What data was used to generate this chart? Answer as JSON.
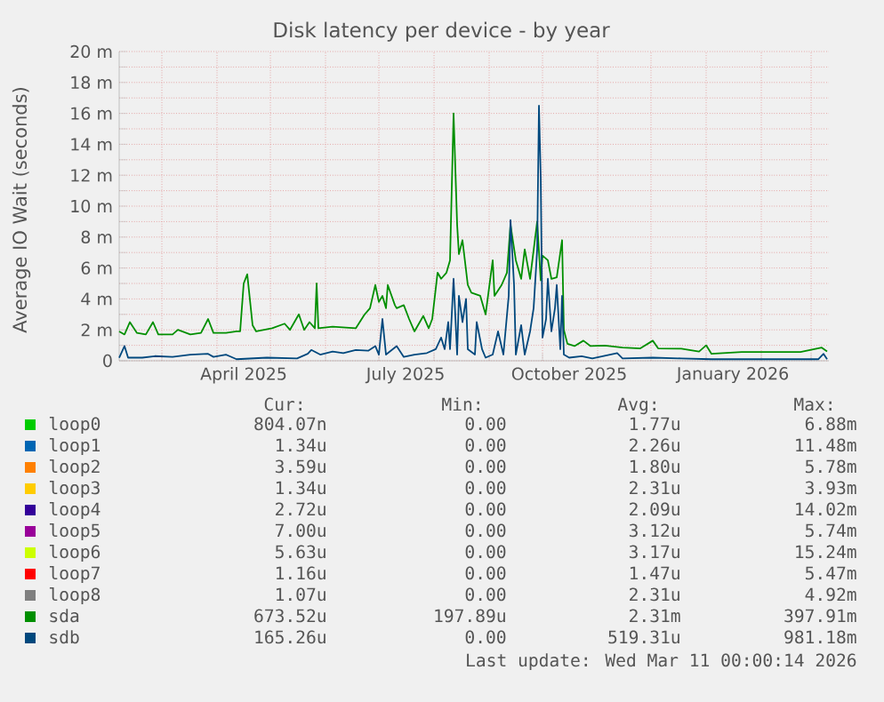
{
  "chart_data": {
    "type": "line",
    "title": "Disk latency per device - by year",
    "ylabel": "Average IO Wait (seconds)",
    "xlim": [
      "2025-02-05",
      "2026-03-11"
    ],
    "ylim": [
      0,
      20
    ],
    "xticks": [
      {
        "value": "2025-03-01",
        "label": null
      },
      {
        "value": "2025-04-01",
        "label": null
      },
      {
        "value": "2025-05-01",
        "label": null
      },
      {
        "value": "2025-06-01",
        "label": null
      },
      {
        "value": "2025-07-01",
        "label": null
      },
      {
        "value": "2025-08-01",
        "label": null
      },
      {
        "value": "2025-09-01",
        "label": null
      },
      {
        "value": "2025-10-01",
        "label": null
      },
      {
        "value": "2025-11-01",
        "label": null
      },
      {
        "value": "2025-12-01",
        "label": null
      },
      {
        "value": "2026-01-01",
        "label": null
      },
      {
        "value": "2026-02-01",
        "label": null
      },
      {
        "value": "2026-03-01",
        "label": null
      },
      {
        "value": "2025-04-16",
        "label": "April 2025"
      },
      {
        "value": "2025-07-16",
        "label": "July 2025"
      },
      {
        "value": "2025-10-16",
        "label": "October 2025"
      },
      {
        "value": "2026-01-16",
        "label": "January 2026"
      }
    ],
    "yticks": [
      0,
      {
        "value": 1,
        "label": null
      },
      {
        "value": 2,
        "label": "2 m"
      },
      {
        "value": 3,
        "label": null
      },
      {
        "value": 4,
        "label": "4 m"
      },
      {
        "value": 5,
        "label": null
      },
      {
        "value": 6,
        "label": "6 m"
      },
      {
        "value": 7,
        "label": null
      },
      {
        "value": 8,
        "label": "8 m"
      },
      {
        "value": 9,
        "label": null
      },
      {
        "value": 10,
        "label": "10 m"
      },
      {
        "value": 11,
        "label": null
      },
      {
        "value": 12,
        "label": "12 m"
      },
      {
        "value": 13,
        "label": null
      },
      {
        "value": 14,
        "label": "14 m"
      },
      {
        "value": 15,
        "label": null
      },
      {
        "value": 16,
        "label": "16 m"
      },
      {
        "value": 17,
        "label": null
      },
      {
        "value": 18,
        "label": "18 m"
      },
      {
        "value": 19,
        "label": null
      },
      {
        "value": 20,
        "label": "20 m"
      }
    ],
    "grid": true,
    "legend": "bottom",
    "marker": "none",
    "line_style": "solid",
    "series": [
      {
        "name": "loop0",
        "color": "#00cc00"
      },
      {
        "name": "loop1",
        "color": "#0066b3"
      },
      {
        "name": "loop2",
        "color": "#ff8000"
      },
      {
        "name": "loop3",
        "color": "#ffcc00"
      },
      {
        "name": "loop4",
        "color": "#330099"
      },
      {
        "name": "loop5",
        "color": "#990099"
      },
      {
        "name": "loop6",
        "color": "#ccff00"
      },
      {
        "name": "loop7",
        "color": "#ff0000"
      },
      {
        "name": "loop8",
        "color": "#808080"
      },
      {
        "name": "sda",
        "color": "#008f00",
        "x": [
          "2025-02-05",
          "2025-02-08",
          "2025-02-11",
          "2025-02-15",
          "2025-02-20",
          "2025-02-24",
          "2025-02-27",
          "2025-03-07",
          "2025-03-10",
          "2025-03-17",
          "2025-03-23",
          "2025-03-27",
          "2025-03-30",
          "2025-04-06",
          "2025-04-12",
          "2025-04-14",
          "2025-04-16",
          "2025-04-18",
          "2025-04-21",
          "2025-04-23",
          "2025-05-02",
          "2025-05-09",
          "2025-05-12",
          "2025-05-17",
          "2025-05-20",
          "2025-05-23",
          "2025-05-26",
          "2025-05-27",
          "2025-05-28",
          "2025-06-05",
          "2025-06-18",
          "2025-06-23",
          "2025-06-26",
          "2025-06-29",
          "2025-07-01",
          "2025-07-03",
          "2025-07-05",
          "2025-07-06",
          "2025-07-10",
          "2025-07-11",
          "2025-07-15",
          "2025-07-18",
          "2025-07-21",
          "2025-07-26",
          "2025-07-29",
          "2025-07-31",
          "2025-08-03",
          "2025-08-05",
          "2025-08-08",
          "2025-08-10",
          "2025-08-12",
          "2025-08-14",
          "2025-08-15",
          "2025-08-17",
          "2025-08-20",
          "2025-08-22",
          "2025-08-27",
          "2025-08-30",
          "2025-09-03",
          "2025-09-04",
          "2025-09-08",
          "2025-09-11",
          "2025-09-13",
          "2025-09-16",
          "2025-09-19",
          "2025-09-21",
          "2025-09-24",
          "2025-09-28",
          "2025-09-30",
          "2025-10-01",
          "2025-10-04",
          "2025-10-06",
          "2025-10-09",
          "2025-10-12",
          "2025-10-13",
          "2025-10-15",
          "2025-10-19",
          "2025-10-24",
          "2025-10-28",
          "2025-11-05",
          "2025-11-15",
          "2025-11-25",
          "2025-12-02",
          "2025-12-05",
          "2025-12-18",
          "2025-12-28",
          "2026-01-01",
          "2026-01-04",
          "2026-01-21",
          "2026-02-06",
          "2026-02-23",
          "2026-03-07",
          "2026-03-10"
        ],
        "values": [
          1.9,
          1.7,
          2.5,
          1.8,
          1.7,
          2.5,
          1.7,
          1.7,
          2.0,
          1.7,
          1.8,
          2.7,
          1.8,
          1.8,
          1.9,
          1.9,
          5.0,
          5.6,
          2.3,
          1.9,
          2.1,
          2.4,
          2.0,
          3.0,
          2.0,
          2.5,
          2.1,
          5.0,
          2.1,
          2.2,
          2.1,
          3.0,
          3.4,
          4.9,
          3.8,
          4.2,
          3.4,
          4.9,
          3.6,
          3.4,
          3.6,
          2.7,
          1.9,
          2.9,
          2.1,
          2.7,
          5.7,
          5.3,
          5.7,
          6.5,
          16.0,
          8.8,
          6.9,
          7.8,
          4.9,
          4.4,
          4.2,
          3.0,
          6.5,
          4.2,
          4.9,
          5.7,
          8.8,
          6.5,
          5.3,
          7.2,
          5.3,
          9.0,
          5.2,
          6.8,
          6.5,
          5.3,
          5.4,
          7.8,
          2.0,
          1.1,
          0.95,
          1.3,
          0.95,
          0.98,
          0.85,
          0.8,
          1.3,
          0.8,
          0.78,
          0.6,
          1.0,
          0.45,
          0.57,
          0.57,
          0.57,
          0.85,
          0.6
        ]
      },
      {
        "name": "sdb",
        "color": "#00487d",
        "x": [
          "2025-02-05",
          "2025-02-08",
          "2025-02-10",
          "2025-02-18",
          "2025-02-25",
          "2025-03-07",
          "2025-03-17",
          "2025-03-27",
          "2025-03-30",
          "2025-04-06",
          "2025-04-12",
          "2025-04-29",
          "2025-05-16",
          "2025-05-22",
          "2025-05-24",
          "2025-05-29",
          "2025-06-05",
          "2025-06-11",
          "2025-06-18",
          "2025-06-25",
          "2025-06-29",
          "2025-07-01",
          "2025-07-03",
          "2025-07-05",
          "2025-07-11",
          "2025-07-15",
          "2025-07-21",
          "2025-07-28",
          "2025-08-02",
          "2025-08-05",
          "2025-08-07",
          "2025-08-09",
          "2025-08-10",
          "2025-08-12",
          "2025-08-14",
          "2025-08-15",
          "2025-08-17",
          "2025-08-19",
          "2025-08-20",
          "2025-08-24",
          "2025-08-25",
          "2025-08-28",
          "2025-08-30",
          "2025-09-03",
          "2025-09-06",
          "2025-09-09",
          "2025-09-12",
          "2025-09-13",
          "2025-09-15",
          "2025-09-16",
          "2025-09-19",
          "2025-09-21",
          "2025-09-24",
          "2025-09-26",
          "2025-09-28",
          "2025-09-29",
          "2025-09-30",
          "2025-10-01",
          "2025-10-03",
          "2025-10-04",
          "2025-10-06",
          "2025-10-08",
          "2025-10-09",
          "2025-10-11",
          "2025-10-12",
          "2025-10-13",
          "2025-10-16",
          "2025-10-23",
          "2025-10-29",
          "2025-11-12",
          "2025-11-15",
          "2025-12-02",
          "2025-12-18",
          "2026-01-04",
          "2026-02-06",
          "2026-03-05",
          "2026-03-08",
          "2026-03-10"
        ],
        "values": [
          0.2,
          0.95,
          0.2,
          0.2,
          0.3,
          0.25,
          0.4,
          0.45,
          0.25,
          0.4,
          0.1,
          0.2,
          0.15,
          0.45,
          0.7,
          0.4,
          0.6,
          0.5,
          0.7,
          0.65,
          0.95,
          0.4,
          2.7,
          0.4,
          0.95,
          0.25,
          0.4,
          0.5,
          0.75,
          1.5,
          0.75,
          2.5,
          0.75,
          5.3,
          0.4,
          4.2,
          2.5,
          4.0,
          0.75,
          0.4,
          2.5,
          0.75,
          0.2,
          0.4,
          1.9,
          0.4,
          4.2,
          9.1,
          4.9,
          0.4,
          2.3,
          0.4,
          1.9,
          3.4,
          7.2,
          16.5,
          11.8,
          1.5,
          2.7,
          5.3,
          1.9,
          3.4,
          4.9,
          0.75,
          4.2,
          0.4,
          0.2,
          0.3,
          0.15,
          0.5,
          0.15,
          0.2,
          0.15,
          0.1,
          0.1,
          0.1,
          0.45,
          0.1
        ]
      }
    ],
    "annotations": [
      "Cur:",
      "Min:",
      "Avg:",
      "Max:",
      "804.07n",
      "0.00",
      "1.77u",
      "6.88m",
      "1.34u",
      "0.00",
      "2.26u",
      "11.48m",
      "3.59u",
      "0.00",
      "1.80u",
      "5.78m",
      "1.34u",
      "0.00",
      "2.31u",
      "3.93m",
      "2.72u",
      "0.00",
      "2.09u",
      "14.02m",
      "7.00u",
      "0.00",
      "3.12u",
      "5.74m",
      "5.63u",
      "0.00",
      "3.17u",
      "15.24m",
      "1.16u",
      "0.00",
      "1.47u",
      "5.47m",
      "1.07u",
      "0.00",
      "2.31u",
      "4.92m",
      "673.52u",
      "197.89u",
      "2.31m",
      "397.91m",
      "165.26u",
      "0.00",
      "519.31u",
      "981.18m",
      "Last update: Wed Mar 11 00:00:14 2026"
    ]
  }
}
